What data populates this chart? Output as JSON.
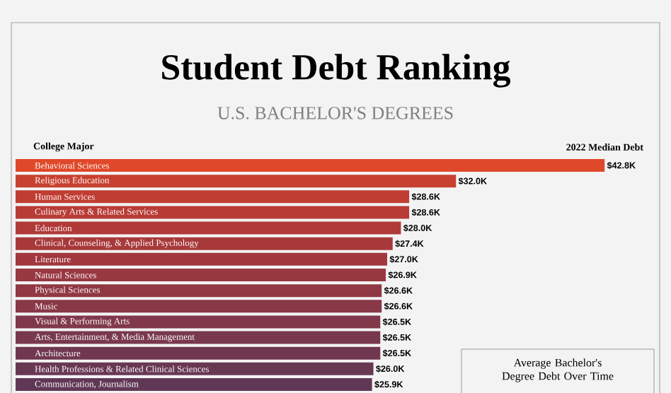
{
  "chart_data": {
    "type": "bar",
    "orientation": "horizontal",
    "title": "Student Debt Ranking",
    "subtitle": "U.S. BACHELOR'S DEGREES",
    "ylabel": "College Major",
    "xlabel": "2022 Median Debt",
    "categories": [
      "Behavioral Sciences",
      "Religious Education",
      "Human Services",
      "Culinary Arts & Related Services",
      "Education",
      "Clinical, Counseling, & Applied Psychology",
      "Literature",
      "Natural Sciences",
      "Physical Sciences",
      "Music",
      "Visual & Performing Arts",
      "Arts, Entertainment, & Media Management",
      "Architecture",
      "Health Professions & Related Clinical Sciences",
      "Communication, Journalism"
    ],
    "values": [
      42.8,
      32.0,
      28.6,
      28.6,
      28.0,
      27.4,
      27.0,
      26.9,
      26.6,
      26.6,
      26.5,
      26.5,
      26.5,
      26.0,
      25.9
    ],
    "value_labels": [
      "$42.8K",
      "$32.0K",
      "$28.6K",
      "$28.6K",
      "$28.0K",
      "$27.4K",
      "$27.0K",
      "$26.9K",
      "$26.6K",
      "$26.6K",
      "$26.5K",
      "$26.5K",
      "$26.5K",
      "$26.0K",
      "$25.9K"
    ],
    "colors": [
      "#e0482a",
      "#c8402f",
      "#c03d33",
      "#b83b36",
      "#b03a38",
      "#a8393b",
      "#a0383e",
      "#983841",
      "#903844",
      "#883847",
      "#80384a",
      "#78384d",
      "#703850",
      "#683853",
      "#603856"
    ],
    "xlim": [
      0,
      46.7
    ],
    "annotations": [
      "Average Bachelor's Degree Debt Over Time"
    ]
  }
}
